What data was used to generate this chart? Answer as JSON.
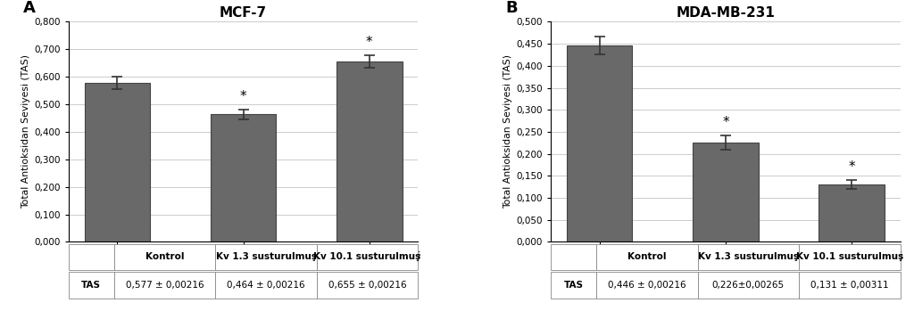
{
  "panel_A": {
    "title": "MCF-7",
    "label": "A",
    "categories": [
      "Kontrol",
      "Kv 1.3 susturulmuş",
      "Kv 10.1 susturulmuş"
    ],
    "values": [
      0.577,
      0.464,
      0.655
    ],
    "errors": [
      0.022,
      0.018,
      0.022
    ],
    "ylim": [
      0.0,
      0.8
    ],
    "yticks": [
      0.0,
      0.1,
      0.2,
      0.3,
      0.4,
      0.5,
      0.6,
      0.7,
      0.8
    ],
    "ytick_labels": [
      "0,000",
      "0,100",
      "0,200",
      "0,300",
      "0,400",
      "0,500",
      "0,600",
      "0,700",
      "0,800"
    ],
    "significance": [
      false,
      true,
      true
    ],
    "ylabel": "Total Antioksidan Seviyesi (TAS)",
    "table_row_label": "TAS",
    "table_header": [
      "Kontrol",
      "Kv 1.3 susturulmuş",
      "Kv 10.1 susturulmuş"
    ],
    "table_values": [
      "0,577 ± 0,00216",
      "0,464 ± 0,00216",
      "0,655 ± 0,00216"
    ]
  },
  "panel_B": {
    "title": "MDA-MB-231",
    "label": "B",
    "categories": [
      "Kontrol",
      "Kv 1.3 susturulmuş",
      "Kv 10.1 susturulmuş"
    ],
    "values": [
      0.446,
      0.226,
      0.131
    ],
    "errors": [
      0.02,
      0.016,
      0.01
    ],
    "ylim": [
      0.0,
      0.5
    ],
    "yticks": [
      0.0,
      0.05,
      0.1,
      0.15,
      0.2,
      0.25,
      0.3,
      0.35,
      0.4,
      0.45,
      0.5
    ],
    "ytick_labels": [
      "0,000",
      "0,050",
      "0,100",
      "0,150",
      "0,200",
      "0,250",
      "0,300",
      "0,350",
      "0,400",
      "0,450",
      "0,500"
    ],
    "significance": [
      false,
      true,
      true
    ],
    "ylabel": "Total Antioksidan Seviyesi (TAS)",
    "table_row_label": "TAS",
    "table_header": [
      "Kontrol",
      "Kv 1.3 susturulmuş",
      "Kv 10.1 susturulmuş"
    ],
    "table_values": [
      "0,446 ± 0,00216",
      "0,226±0,00265",
      "0,131 ± 0,00311"
    ]
  },
  "bar_color": "#696969",
  "bar_edge_color": "#444444",
  "error_color": "#333333",
  "background_color": "#ffffff",
  "grid_color": "#cccccc"
}
